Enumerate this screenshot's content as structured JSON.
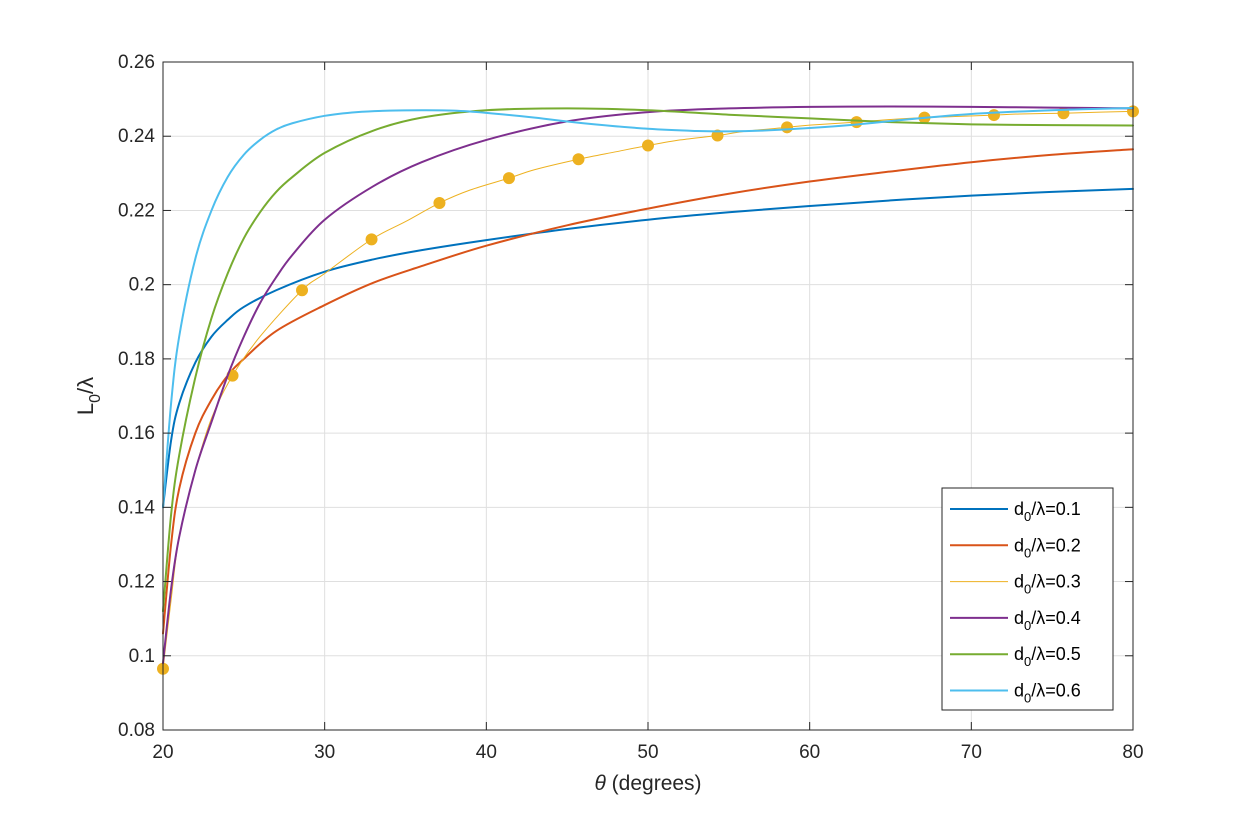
{
  "chart_data": {
    "type": "line",
    "title": "",
    "xlabel": {
      "symbol": "θ",
      "text": " (degrees)"
    },
    "ylabel": {
      "base": "L",
      "sub": "0",
      "rest": "/λ"
    },
    "xlim": [
      20,
      80
    ],
    "ylim": [
      0.08,
      0.26
    ],
    "xticks": [
      20,
      30,
      40,
      50,
      60,
      70,
      80
    ],
    "xtick_labels": [
      "20",
      "30",
      "40",
      "50",
      "60",
      "70",
      "80"
    ],
    "yticks": [
      0.08,
      0.1,
      0.12,
      0.14,
      0.16,
      0.18,
      0.2,
      0.22,
      0.24,
      0.26
    ],
    "ytick_labels": [
      "0.08",
      "0.1",
      "0.12",
      "0.14",
      "0.16",
      "0.18",
      "0.2",
      "0.22",
      "0.24",
      "0.26"
    ],
    "grid": true,
    "legend_position": "bottom-right",
    "series": [
      {
        "name": "d0/λ=0.1",
        "legend": {
          "base": "d",
          "sub": "0",
          "rest": "/λ=0.1"
        },
        "color": "#0072BD",
        "line_width": "thick",
        "x": [
          20,
          20.5,
          21,
          22,
          23,
          24,
          25,
          27,
          30,
          33,
          36,
          40,
          45,
          50,
          55,
          60,
          65,
          70,
          75,
          80
        ],
        "y": [
          0.14,
          0.158,
          0.168,
          0.179,
          0.186,
          0.1905,
          0.194,
          0.1985,
          0.2035,
          0.2068,
          0.2093,
          0.212,
          0.215,
          0.2175,
          0.2195,
          0.2212,
          0.2227,
          0.224,
          0.225,
          0.2258
        ]
      },
      {
        "name": "d0/λ=0.2",
        "legend": {
          "base": "d",
          "sub": "0",
          "rest": "/λ=0.2"
        },
        "color": "#D95319",
        "line_width": "thick",
        "x": [
          20,
          20.5,
          21,
          22,
          23,
          24,
          25,
          27,
          30,
          33,
          36,
          40,
          45,
          50,
          55,
          60,
          65,
          70,
          75,
          80
        ],
        "y": [
          0.106,
          0.13,
          0.145,
          0.16,
          0.169,
          0.1755,
          0.18,
          0.1875,
          0.1945,
          0.2005,
          0.205,
          0.2105,
          0.216,
          0.2205,
          0.2245,
          0.2278,
          0.2305,
          0.233,
          0.235,
          0.2365
        ]
      },
      {
        "name": "d0/λ=0.3",
        "legend": {
          "base": "d",
          "sub": "0",
          "rest": "/λ=0.3"
        },
        "color": "#EDB120",
        "line_width": "thin",
        "markers": true,
        "x": [
          20,
          20.5,
          21,
          22,
          23,
          24.3,
          26,
          28.6,
          30,
          32.9,
          35,
          37.1,
          39,
          41.4,
          43,
          45.7,
          48,
          50,
          52,
          54.3,
          56,
          58.6,
          60,
          62.9,
          65,
          67.1,
          69,
          71.4,
          73,
          75.7,
          78,
          80
        ],
        "y": [
          0.0965,
          0.115,
          0.132,
          0.15,
          0.164,
          0.1755,
          0.186,
          0.1985,
          0.203,
          0.2122,
          0.217,
          0.222,
          0.2255,
          0.2287,
          0.231,
          0.2338,
          0.2358,
          0.2375,
          0.239,
          0.2402,
          0.2413,
          0.2424,
          0.243,
          0.2438,
          0.2445,
          0.245,
          0.2453,
          0.2457,
          0.246,
          0.2462,
          0.2465,
          0.2467
        ]
      },
      {
        "name": "d0/λ=0.4",
        "legend": {
          "base": "d",
          "sub": "0",
          "rest": "/λ=0.4"
        },
        "color": "#7E2F8E",
        "line_width": "thick",
        "x": [
          20,
          20.5,
          21,
          22,
          23,
          24,
          25,
          26,
          27,
          28,
          30,
          33,
          36,
          40,
          45,
          50,
          55,
          60,
          65,
          70,
          75,
          80
        ],
        "y": [
          0.098,
          0.118,
          0.132,
          0.15,
          0.163,
          0.1755,
          0.186,
          0.195,
          0.202,
          0.208,
          0.2175,
          0.2265,
          0.233,
          0.239,
          0.244,
          0.2465,
          0.2475,
          0.2479,
          0.248,
          0.2479,
          0.2477,
          0.2475
        ]
      },
      {
        "name": "d0/λ=0.5",
        "legend": {
          "base": "d",
          "sub": "0",
          "rest": "/λ=0.5"
        },
        "color": "#77AC30",
        "line_width": "thick",
        "x": [
          20,
          20.5,
          21,
          22,
          23,
          24,
          25,
          26,
          27,
          28,
          30,
          33,
          36,
          40,
          45,
          50,
          55,
          60,
          65,
          70,
          75,
          80
        ],
        "y": [
          0.112,
          0.138,
          0.154,
          0.175,
          0.191,
          0.203,
          0.2125,
          0.2195,
          0.225,
          0.229,
          0.2355,
          0.2415,
          0.245,
          0.247,
          0.2475,
          0.247,
          0.2458,
          0.2448,
          0.2438,
          0.2432,
          0.243,
          0.2429
        ]
      },
      {
        "name": "d0/λ=0.6",
        "legend": {
          "base": "d",
          "sub": "0",
          "rest": "/λ=0.6"
        },
        "color": "#4DBEEE",
        "line_width": "thick",
        "x": [
          20,
          20.5,
          21,
          22,
          23,
          24,
          25,
          26,
          27,
          28,
          30,
          32,
          34,
          36,
          38,
          40,
          43,
          46,
          50,
          53,
          55,
          57,
          60,
          63,
          66,
          70,
          75,
          80
        ],
        "y": [
          0.14,
          0.168,
          0.186,
          0.207,
          0.22,
          0.229,
          0.235,
          0.239,
          0.2418,
          0.2435,
          0.2455,
          0.2465,
          0.2469,
          0.247,
          0.2469,
          0.2463,
          0.245,
          0.2435,
          0.242,
          0.2414,
          0.2413,
          0.2415,
          0.2422,
          0.2432,
          0.2445,
          0.246,
          0.247,
          0.2476
        ]
      }
    ]
  }
}
